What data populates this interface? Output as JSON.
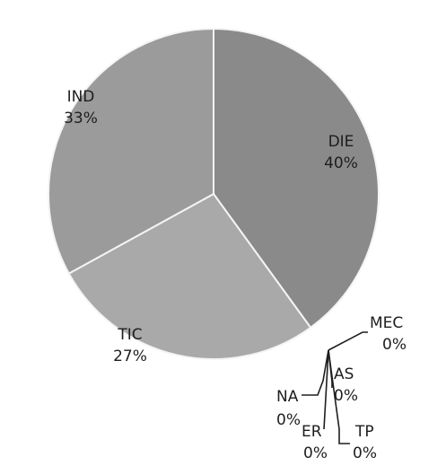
{
  "chart_data": {
    "type": "pie",
    "title": "",
    "slices": [
      {
        "label": "DIE",
        "value": 40,
        "value_label": "40%",
        "color": "#8a8a8a"
      },
      {
        "label": "MEC",
        "value": 0,
        "value_label": "0%",
        "color": "#6e6e6e"
      },
      {
        "label": "AS",
        "value": 0,
        "value_label": "0%",
        "color": "#6e6e6e"
      },
      {
        "label": "TP",
        "value": 0,
        "value_label": "0%",
        "color": "#6e6e6e"
      },
      {
        "label": "ER",
        "value": 0,
        "value_label": "0%",
        "color": "#6e6e6e"
      },
      {
        "label": "NA",
        "value": 0,
        "value_label": "0%",
        "color": "#6e6e6e"
      },
      {
        "label": "TIC",
        "value": 27,
        "value_label": "27%",
        "color": "#a9a9a9"
      },
      {
        "label": "IND",
        "value": 33,
        "value_label": "33%",
        "color": "#9b9b9b"
      }
    ]
  }
}
